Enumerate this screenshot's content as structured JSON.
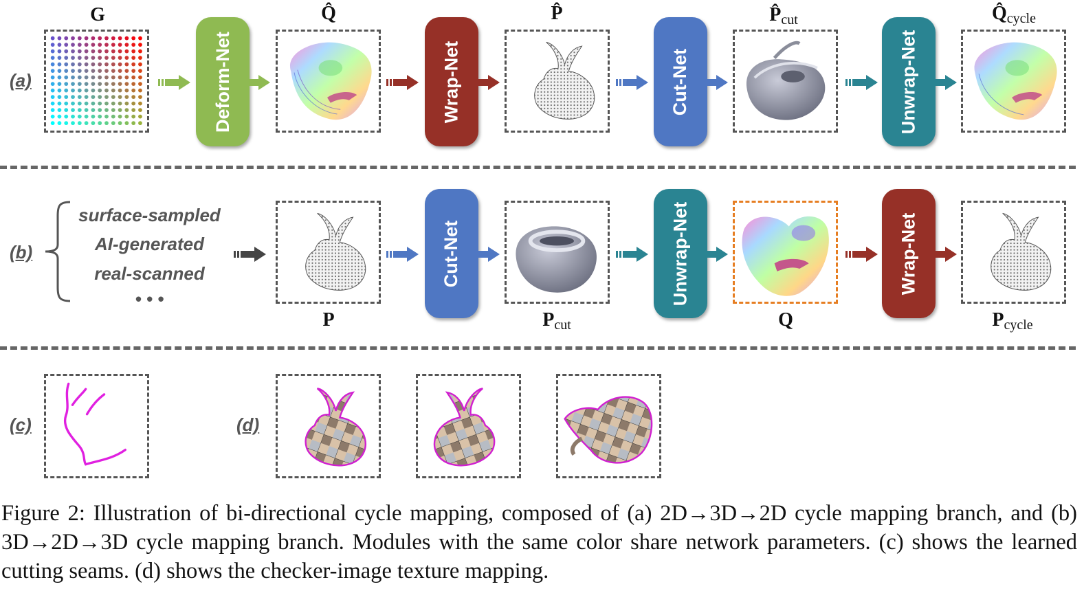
{
  "colors": {
    "deform": "#8fba52",
    "wrap": "#963027",
    "cut": "#4f77c3",
    "unwrap": "#2a8492",
    "input_arrow": "#444444"
  },
  "row_a": {
    "label": "(a)",
    "symbols": [
      "G",
      "Q̂",
      "P̂",
      "P̂",
      "Q̂"
    ],
    "subscripts": [
      "cut",
      "cycle"
    ],
    "nets": [
      "Deform-Net",
      "Wrap-Net",
      "Cut-Net",
      "Unwrap-Net"
    ]
  },
  "row_b": {
    "label": "(b)",
    "sources": [
      "surface-sampled",
      "AI-generated",
      "real-scanned",
      "• • •"
    ],
    "symbols": [
      "P",
      "P",
      "Q",
      "P"
    ],
    "subscripts": [
      "cut",
      "cycle"
    ],
    "nets": [
      "Cut-Net",
      "Unwrap-Net",
      "Wrap-Net"
    ]
  },
  "row_cd": {
    "label_c": "(c)",
    "label_d": "(d)"
  },
  "caption": "Figure 2: Illustration of bi-directional cycle mapping, composed of (a) 2D→3D→2D cycle mapping branch, and (b) 3D→2D→3D cycle mapping branch. Modules with the same color share network parameters. (c) shows the learned cutting seams. (d) shows the checker-image texture mapping."
}
